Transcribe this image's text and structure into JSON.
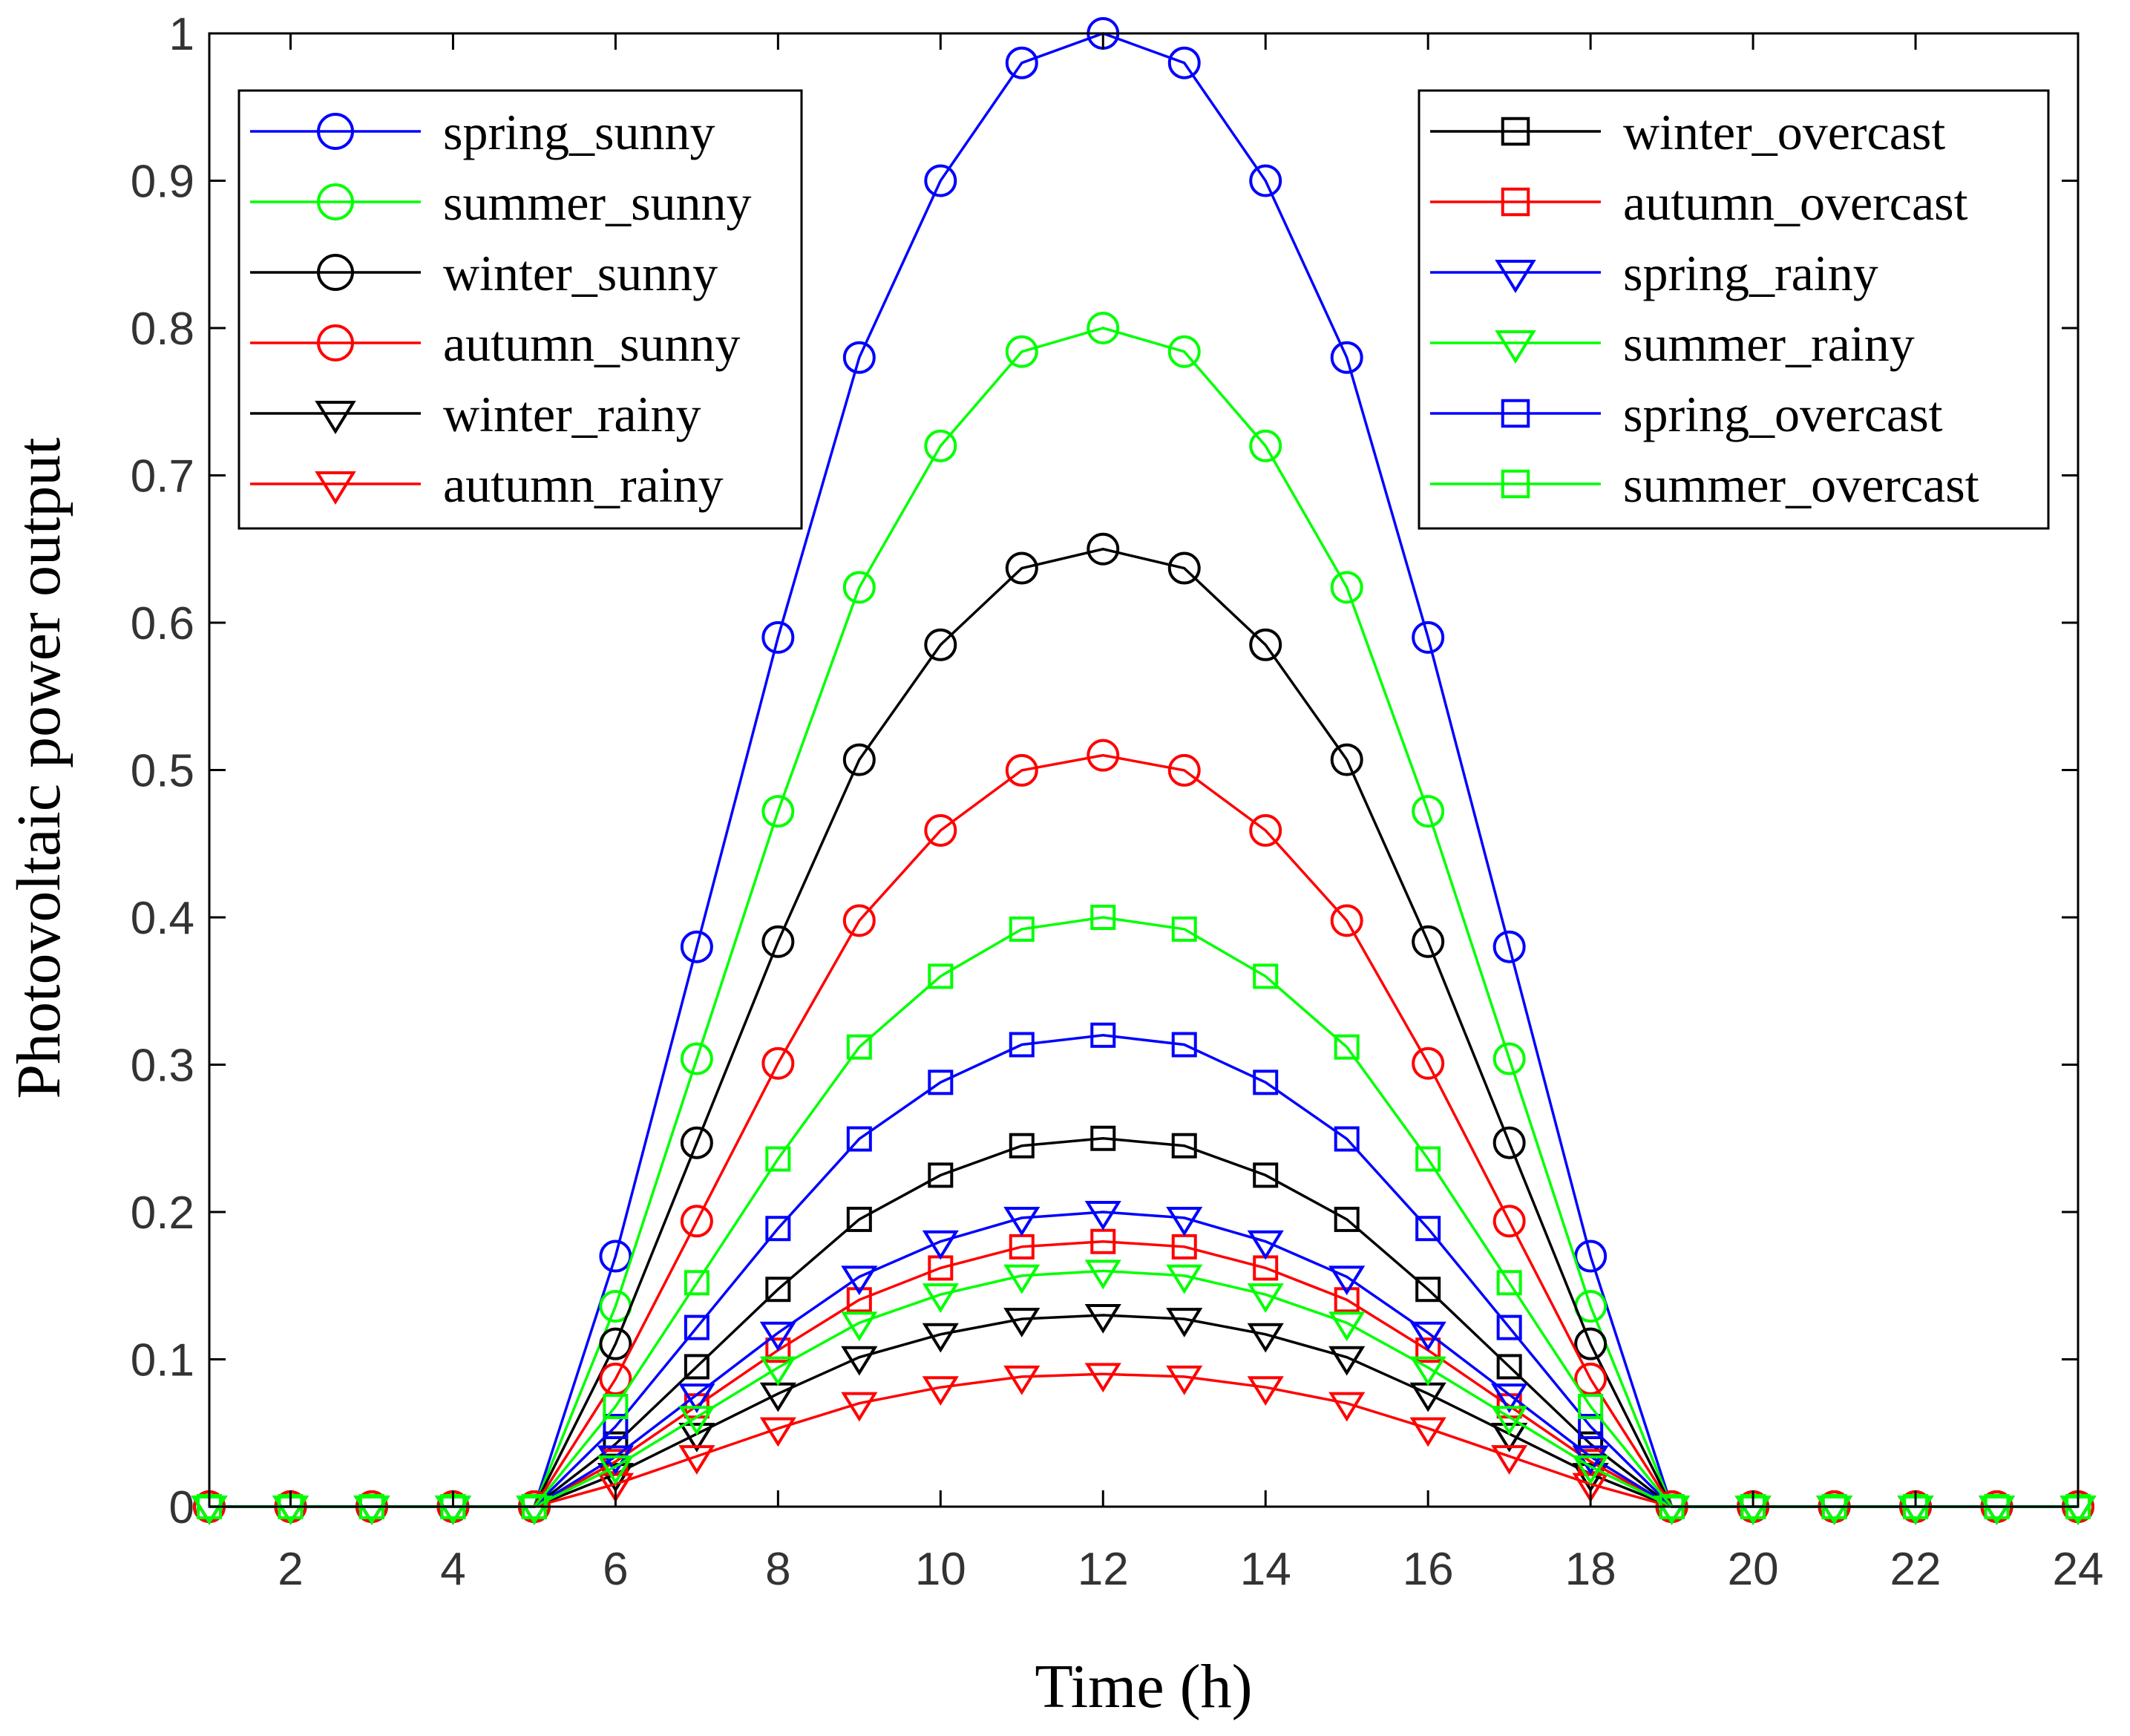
{
  "chart_data": {
    "type": "line",
    "xlabel": "Time (h)",
    "ylabel": "Photovoltaic power  output",
    "xlim": [
      1,
      24
    ],
    "ylim": [
      0,
      1
    ],
    "xticks": [
      2,
      4,
      6,
      8,
      10,
      12,
      14,
      16,
      18,
      20,
      22,
      24
    ],
    "yticks": [
      0,
      0.1,
      0.2,
      0.3,
      0.4,
      0.5,
      0.6,
      0.7,
      0.8,
      0.9,
      1
    ],
    "ytick_labels": [
      "0",
      "0.1",
      "0.2",
      "0.3",
      "0.4",
      "0.5",
      "0.6",
      "0.7",
      "0.8",
      "0.9",
      "1"
    ],
    "grid": false,
    "x": [
      1,
      2,
      3,
      4,
      5,
      6,
      7,
      8,
      9,
      10,
      11,
      12,
      13,
      14,
      15,
      16,
      17,
      18,
      19,
      20,
      21,
      22,
      23,
      24
    ],
    "base_profile": [
      0,
      0,
      0,
      0,
      0,
      0.17,
      0.38,
      0.59,
      0.78,
      0.9,
      0.98,
      1.0,
      0.98,
      0.9,
      0.78,
      0.59,
      0.38,
      0.17,
      0,
      0,
      0,
      0,
      0,
      0
    ],
    "series": [
      {
        "name": "spring_sunny",
        "peak": 1.0,
        "color": "#0000ff",
        "marker": "circle",
        "legend": "left"
      },
      {
        "name": "summer_sunny",
        "peak": 0.8,
        "color": "#00ff00",
        "marker": "circle",
        "legend": "left"
      },
      {
        "name": "winter_sunny",
        "peak": 0.65,
        "color": "#000000",
        "marker": "circle",
        "legend": "left"
      },
      {
        "name": "autumn_sunny",
        "peak": 0.51,
        "color": "#ff0000",
        "marker": "circle",
        "legend": "left"
      },
      {
        "name": "winter_rainy",
        "peak": 0.13,
        "color": "#000000",
        "marker": "triangle-down",
        "legend": "left"
      },
      {
        "name": "autumn_rainy",
        "peak": 0.09,
        "color": "#ff0000",
        "marker": "triangle-down",
        "legend": "left"
      },
      {
        "name": "winter_overcast",
        "peak": 0.25,
        "color": "#000000",
        "marker": "square",
        "legend": "right"
      },
      {
        "name": "autumn_overcast",
        "peak": 0.18,
        "color": "#ff0000",
        "marker": "square",
        "legend": "right"
      },
      {
        "name": "spring_rainy",
        "peak": 0.2,
        "color": "#0000ff",
        "marker": "triangle-down",
        "legend": "right"
      },
      {
        "name": "summer_rainy",
        "peak": 0.16,
        "color": "#00ff00",
        "marker": "triangle-down",
        "legend": "right"
      },
      {
        "name": "spring_overcast",
        "peak": 0.32,
        "color": "#0000ff",
        "marker": "square",
        "legend": "right"
      },
      {
        "name": "summer_overcast",
        "peak": 0.4,
        "color": "#00ff00",
        "marker": "square",
        "legend": "right"
      }
    ],
    "legends": [
      "top-left",
      "top-right"
    ]
  }
}
